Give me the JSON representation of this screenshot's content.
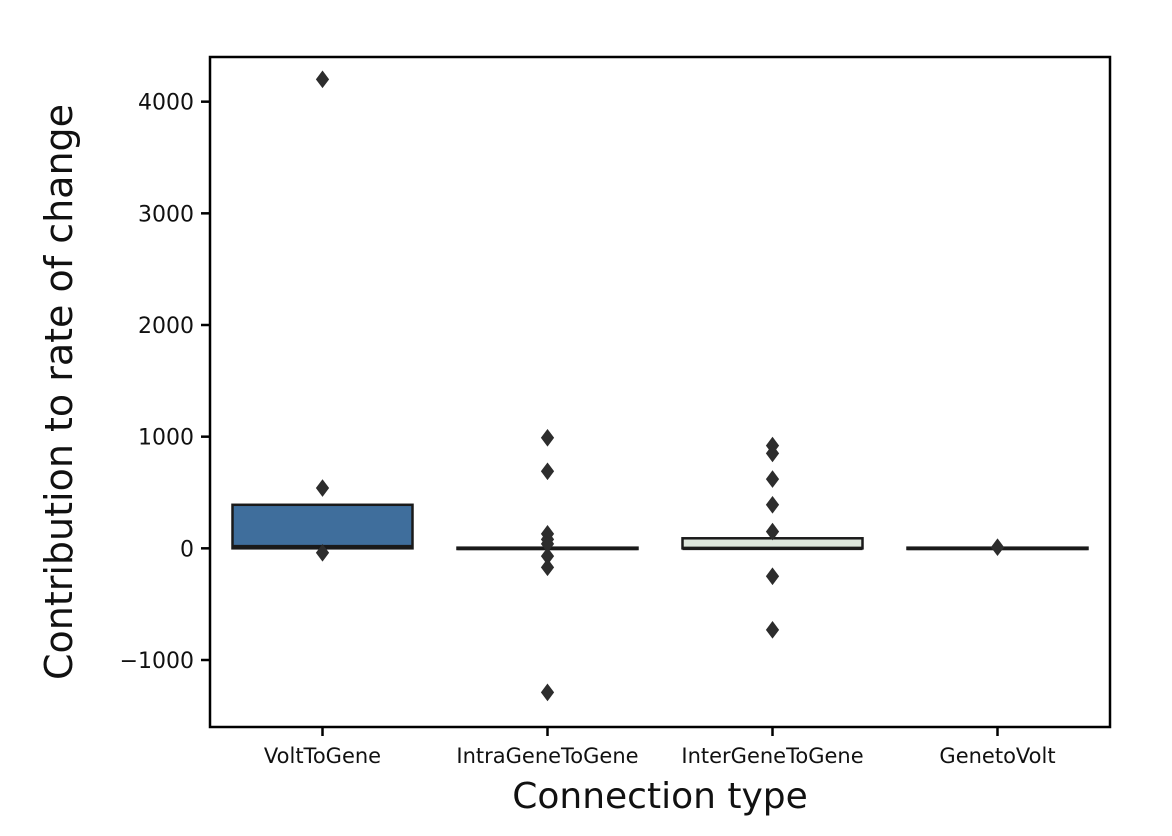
{
  "chart_data": {
    "type": "boxplot",
    "title": "",
    "xlabel": "Connection type",
    "ylabel": "Contribution to rate of change",
    "ylim": [
      -1600,
      4400
    ],
    "yticks": [
      -1000,
      0,
      1000,
      2000,
      3000,
      4000
    ],
    "grid": false,
    "legend": "none",
    "categories": [
      "VoltToGene",
      "IntraGeneToGene",
      "InterGeneToGene",
      "GenetoVolt"
    ],
    "boxes": [
      {
        "category": "VoltToGene",
        "whisker_low": 0,
        "q1": 0,
        "median": 15,
        "q3": 390,
        "whisker_high": 390,
        "fill": "#3f6e9c",
        "outliers": [
          4200,
          540,
          -40
        ]
      },
      {
        "category": "IntraGeneToGene",
        "whisker_low": -6,
        "q1": -6,
        "median": 0,
        "q3": 6,
        "whisker_high": 6,
        "fill": "#e9ecef",
        "outliers": [
          990,
          690,
          130,
          80,
          40,
          -70,
          -170,
          -1290
        ]
      },
      {
        "category": "InterGeneToGene",
        "whisker_low": 0,
        "q1": 0,
        "median": 0,
        "q3": 90,
        "whisker_high": 90,
        "fill": "#dde6dc",
        "outliers": [
          920,
          850,
          620,
          390,
          150,
          -250,
          -730
        ]
      },
      {
        "category": "GenetoVolt",
        "whisker_low": -6,
        "q1": -6,
        "median": 0,
        "q3": 6,
        "whisker_high": 6,
        "fill": "#e9ecef",
        "outliers": [
          10
        ]
      }
    ],
    "style": {
      "edge_color": "#1a1a1a",
      "flier_color": "#2d2d2d",
      "spine_color": "#000000",
      "plot_bg": "#ffffff"
    }
  }
}
